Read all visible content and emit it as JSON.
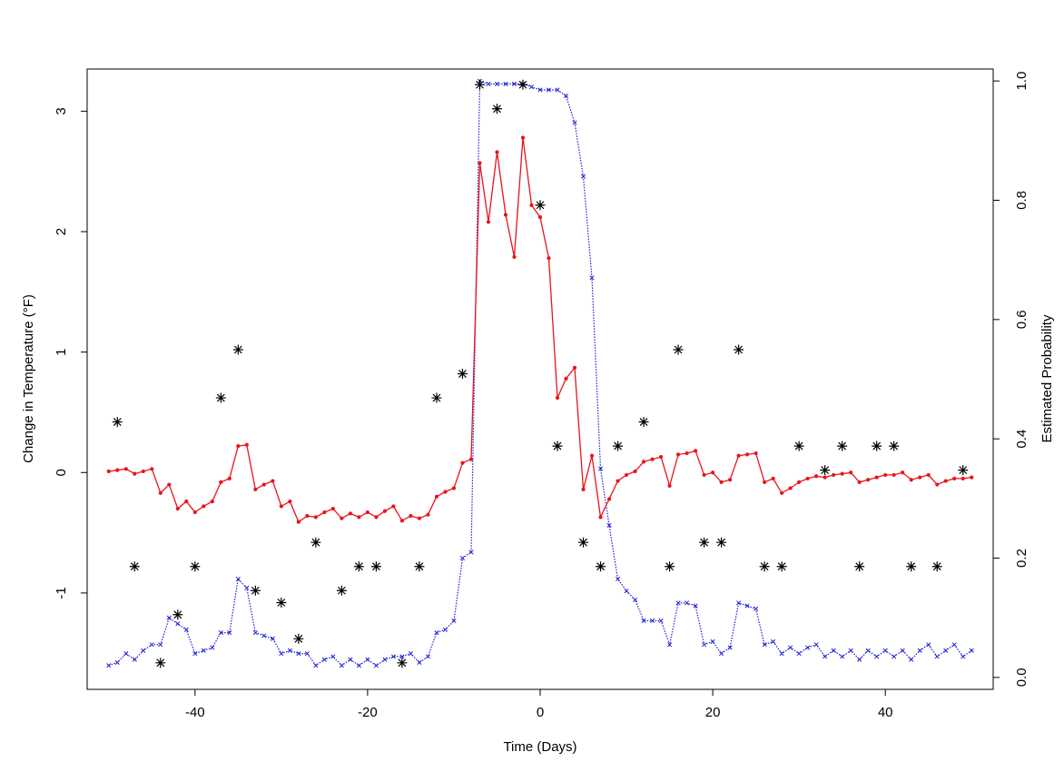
{
  "chart_data": {
    "type": "line",
    "title": "",
    "xlabel": "Time (Days)",
    "ylabel": "Change in Temperature (°F)",
    "y2label": "Estimated Probability",
    "xlim": [
      -52.5,
      52.5
    ],
    "ylim": [
      -1.8,
      3.35
    ],
    "y2lim": [
      -0.02,
      1.02
    ],
    "xticks": [
      -40,
      -20,
      0,
      20,
      40
    ],
    "yticks": [
      -1,
      0,
      1,
      2,
      3
    ],
    "y2ticks": [
      0.0,
      0.2,
      0.4,
      0.6,
      0.8,
      1.0
    ],
    "y2tick_labels": [
      "0.0",
      "0.2",
      "0.4",
      "0.6",
      "0.8",
      "1.0"
    ],
    "grid": false,
    "colors": {
      "red_line": "#e8141c",
      "blue_line": "#1f1fd6",
      "stars": "#000000"
    },
    "x": [
      -50,
      -49,
      -48,
      -47,
      -46,
      -45,
      -44,
      -43,
      -42,
      -41,
      -40,
      -39,
      -38,
      -37,
      -36,
      -35,
      -34,
      -33,
      -32,
      -31,
      -30,
      -29,
      -28,
      -27,
      -26,
      -25,
      -24,
      -23,
      -22,
      -21,
      -20,
      -19,
      -18,
      -17,
      -16,
      -15,
      -14,
      -13,
      -12,
      -11,
      -10,
      -9,
      -8,
      -7,
      -6,
      -5,
      -4,
      -3,
      -2,
      -1,
      0,
      1,
      2,
      3,
      4,
      5,
      6,
      7,
      8,
      9,
      10,
      11,
      12,
      13,
      14,
      15,
      16,
      17,
      18,
      19,
      20,
      21,
      22,
      23,
      24,
      25,
      26,
      27,
      28,
      29,
      30,
      31,
      32,
      33,
      34,
      35,
      36,
      37,
      38,
      39,
      40,
      41,
      42,
      43,
      44,
      45,
      46,
      47,
      48,
      49,
      50
    ],
    "series": [
      {
        "axis": "left",
        "style": "solid-dots",
        "values": [
          0.01,
          0.02,
          0.03,
          -0.01,
          0.01,
          0.03,
          -0.17,
          -0.1,
          -0.3,
          -0.24,
          -0.33,
          -0.28,
          -0.24,
          -0.08,
          -0.05,
          0.22,
          0.23,
          -0.14,
          -0.1,
          -0.07,
          -0.28,
          -0.24,
          -0.41,
          -0.36,
          -0.37,
          -0.33,
          -0.3,
          -0.38,
          -0.34,
          -0.37,
          -0.33,
          -0.37,
          -0.32,
          -0.28,
          -0.4,
          -0.36,
          -0.38,
          -0.35,
          -0.2,
          -0.16,
          -0.13,
          0.08,
          0.11,
          2.57,
          2.08,
          2.66,
          2.14,
          1.79,
          2.78,
          2.22,
          2.12,
          1.78,
          0.62,
          0.78,
          0.87,
          -0.14,
          0.14,
          -0.37,
          -0.22,
          -0.07,
          -0.02,
          0.01,
          0.09,
          0.11,
          0.13,
          -0.11,
          0.15,
          0.16,
          0.18,
          -0.02,
          0.0,
          -0.08,
          -0.06,
          0.14,
          0.15,
          0.16,
          -0.08,
          -0.05,
          -0.17,
          -0.13,
          -0.08,
          -0.05,
          -0.03,
          -0.04,
          -0.02,
          -0.01,
          0.0,
          -0.08,
          -0.06,
          -0.04,
          -0.02,
          -0.02,
          0.0,
          -0.06,
          -0.04,
          -0.02,
          -0.1,
          -0.07,
          -0.05,
          -0.05,
          -0.04
        ]
      },
      {
        "axis": "right",
        "style": "dotted-x",
        "values": [
          0.02,
          0.025,
          0.04,
          0.03,
          0.045,
          0.055,
          0.055,
          0.1,
          0.09,
          0.08,
          0.04,
          0.045,
          0.05,
          0.075,
          0.075,
          0.165,
          0.15,
          0.075,
          0.07,
          0.065,
          0.04,
          0.045,
          0.04,
          0.04,
          0.02,
          0.03,
          0.035,
          0.02,
          0.03,
          0.02,
          0.03,
          0.02,
          0.03,
          0.035,
          0.035,
          0.04,
          0.025,
          0.035,
          0.075,
          0.08,
          0.095,
          0.2,
          0.21,
          1.0,
          0.995,
          0.995,
          0.995,
          0.995,
          0.995,
          0.99,
          0.985,
          0.985,
          0.985,
          0.975,
          0.93,
          0.84,
          0.67,
          0.35,
          0.255,
          0.165,
          0.145,
          0.13,
          0.095,
          0.095,
          0.095,
          0.055,
          0.125,
          0.125,
          0.12,
          0.055,
          0.06,
          0.04,
          0.05,
          0.125,
          0.12,
          0.115,
          0.055,
          0.06,
          0.04,
          0.05,
          0.04,
          0.05,
          0.055,
          0.035,
          0.045,
          0.035,
          0.045,
          0.03,
          0.045,
          0.035,
          0.045,
          0.035,
          0.045,
          0.03,
          0.045,
          0.055,
          0.035,
          0.045,
          0.055,
          0.035,
          0.045
        ]
      },
      {
        "axis": "left",
        "style": "stars",
        "x": [
          -49,
          -47,
          -44,
          -42,
          -40,
          -37,
          -35,
          -33,
          -30,
          -28,
          -26,
          -23,
          -21,
          -19,
          -16,
          -14,
          -12,
          -9,
          -7,
          -5,
          -2,
          0,
          2,
          5,
          7,
          9,
          12,
          15,
          16,
          19,
          21,
          23,
          26,
          28,
          30,
          33,
          35,
          37,
          39,
          41,
          43,
          46,
          49
        ],
        "values": [
          0.42,
          -0.78,
          -1.58,
          -1.18,
          -0.78,
          0.62,
          1.02,
          -0.98,
          -1.08,
          -1.38,
          -0.58,
          -0.98,
          -0.78,
          -0.78,
          -1.58,
          -0.78,
          0.62,
          0.82,
          3.22,
          3.02,
          3.22,
          2.22,
          0.22,
          -0.58,
          -0.78,
          0.22,
          0.42,
          -0.78,
          1.02,
          -0.58,
          -0.58,
          1.02,
          -0.78,
          -0.78,
          0.22,
          0.02,
          0.22,
          -0.78,
          0.22,
          0.22,
          -0.78,
          -0.78,
          0.02
        ]
      }
    ]
  }
}
